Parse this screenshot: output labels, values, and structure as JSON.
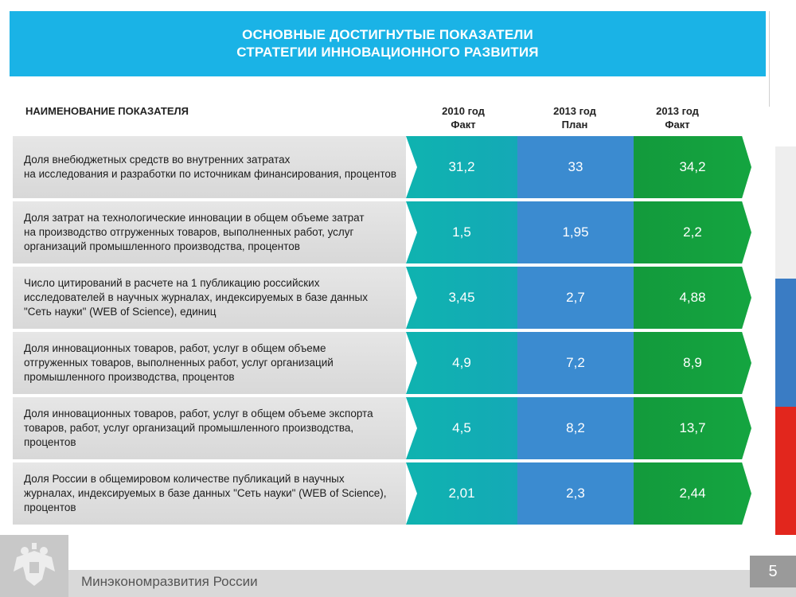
{
  "header": {
    "title_line1": "ОСНОВНЫЕ ДОСТИГНУТЫЕ ПОКАЗАТЕЛИ",
    "title_line2": "СТРАТЕГИИ ИННОВАЦИОННОГО РАЗВИТИЯ"
  },
  "columns": {
    "name": "НАИМЕНОВАНИЕ ПОКАЗАТЕЛЯ",
    "c1_line1": "2010 год",
    "c1_line2": "Факт",
    "c2_line1": "2013 год",
    "c2_line2": "План",
    "c3_line1": "2013 год",
    "c3_line2": "Факт"
  },
  "rows": [
    {
      "lines": [
        "Доля внебюджетных средств во внутренних затратах",
        "на исследования и разработки по источникам финансирования, процентов"
      ],
      "v2010": "31,2",
      "plan2013": "33",
      "fact2013": "34,2"
    },
    {
      "lines": [
        "Доля затрат на технологические инновации в общем объеме затрат",
        "на производство отгруженных товаров, выполненных работ, услуг",
        "организаций промышленного производства, процентов"
      ],
      "v2010": "1,5",
      "plan2013": "1,95",
      "fact2013": "2,2"
    },
    {
      "lines": [
        "Число цитирований в расчете на 1 публикацию российских",
        "исследователей в научных журналах, индексируемых в базе данных",
        "\"Сеть науки\" (WEB of Science), единиц"
      ],
      "v2010": "3,45",
      "plan2013": "2,7",
      "fact2013": "4,88"
    },
    {
      "lines": [
        "Доля инновационных товаров, работ, услуг в общем объеме",
        "отгруженных товаров, выполненных работ, услуг организаций",
        "промышленного производства, процентов"
      ],
      "v2010": "4,9",
      "plan2013": "7,2",
      "fact2013": "8,9"
    },
    {
      "lines": [
        "Доля инновационных товаров, работ, услуг в общем объеме экспорта",
        "товаров, работ, услуг организаций промышленного производства,",
        "процентов"
      ],
      "v2010": "4,5",
      "plan2013": "8,2",
      "fact2013": "13,7"
    },
    {
      "lines": [
        "Доля России в общемировом количестве публикаций в научных",
        "журналах, индексируемых в базе данных \"Сеть науки\" (WEB of Science),",
        "процентов"
      ],
      "v2010": "2,01",
      "plan2013": "2,3",
      "fact2013": "2,44"
    }
  ],
  "footer": {
    "ministry": "Минэкономразвития России",
    "page": "5",
    "emblem_icon": "double-headed-eagle-emblem-icon"
  },
  "colors": {
    "banner": "#1ab3e6",
    "col2010": "#0fb3b0",
    "plan2013": "#3b8bd0",
    "fact2013": "#139a3c"
  }
}
